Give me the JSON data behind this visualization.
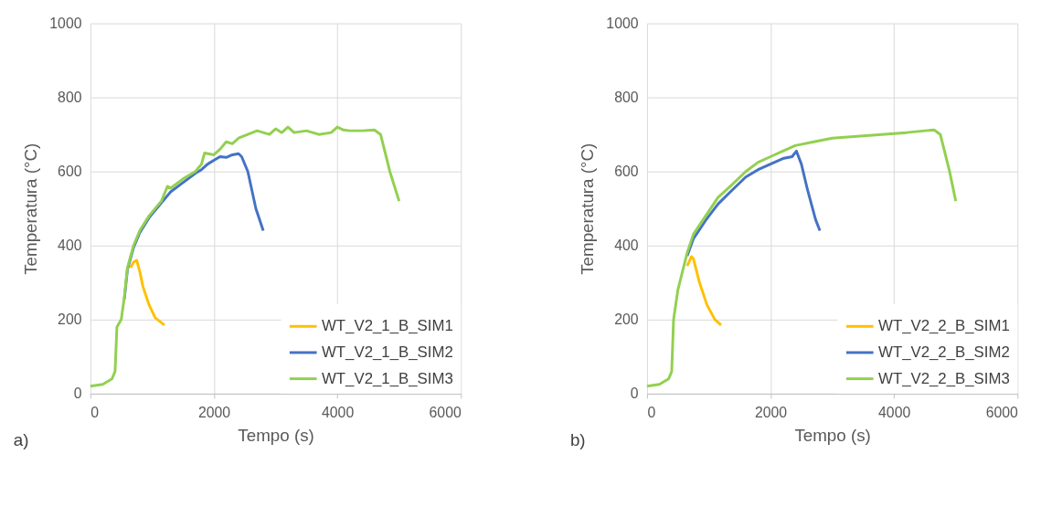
{
  "chart_data": [
    {
      "type": "line",
      "xlabel": "Tempo (s)",
      "ylabel": "Temperatura (°C)",
      "xlim": [
        0,
        6000
      ],
      "ylim": [
        0,
        1000
      ],
      "xticks": [
        0,
        2000,
        4000,
        6000
      ],
      "yticks": [
        0,
        200,
        400,
        600,
        800,
        1000
      ],
      "grid": true,
      "legend": "bottom right",
      "annotations": [
        "a)"
      ],
      "series": [
        {
          "name": "WT_V2_1_B_SIM1",
          "color": "#ffc000",
          "x": [
            650,
            700,
            750,
            800,
            850,
            950,
            1050,
            1200
          ],
          "values": [
            340,
            355,
            360,
            330,
            290,
            240,
            205,
            185
          ]
        },
        {
          "name": "WT_V2_1_B_SIM2",
          "color": "#4472c4",
          "x": [
            550,
            600,
            700,
            800,
            950,
            1150,
            1300,
            1500,
            1700,
            1800,
            1900,
            2000,
            2100,
            2200,
            2300,
            2400,
            2450,
            2550,
            2680,
            2800
          ],
          "values": [
            255,
            335,
            395,
            435,
            475,
            515,
            545,
            570,
            595,
            605,
            620,
            630,
            640,
            638,
            645,
            648,
            640,
            600,
            500,
            440
          ]
        },
        {
          "name": "WT_V2_1_B_SIM3",
          "color": "#92d050",
          "x": [
            0,
            200,
            350,
            400,
            430,
            500,
            550,
            600,
            700,
            800,
            950,
            1150,
            1200,
            1250,
            1300,
            1500,
            1700,
            1800,
            1850,
            2000,
            2100,
            2200,
            2300,
            2400,
            2550,
            2700,
            2800,
            2900,
            3000,
            3100,
            3200,
            3300,
            3500,
            3700,
            3900,
            4000,
            4100,
            4200,
            4400,
            4600,
            4700,
            4850,
            5000
          ],
          "values": [
            20,
            25,
            40,
            60,
            180,
            200,
            260,
            340,
            400,
            440,
            480,
            520,
            540,
            560,
            555,
            580,
            600,
            620,
            650,
            645,
            660,
            680,
            675,
            690,
            700,
            710,
            705,
            700,
            715,
            705,
            720,
            705,
            710,
            700,
            705,
            720,
            712,
            710,
            710,
            712,
            700,
            600,
            520
          ]
        }
      ]
    },
    {
      "type": "line",
      "xlabel": "Tempo (s)",
      "ylabel": "Temperatura (°C)",
      "xlim": [
        0,
        6000
      ],
      "ylim": [
        0,
        1000
      ],
      "xticks": [
        0,
        2000,
        4000,
        6000
      ],
      "yticks": [
        0,
        200,
        400,
        600,
        800,
        1000
      ],
      "grid": true,
      "legend": "bottom right",
      "annotations": [
        "b)"
      ],
      "series": [
        {
          "name": "WT_V2_2_B_SIM1",
          "color": "#ffc000",
          "x": [
            650,
            720,
            750,
            850,
            970,
            1100,
            1200
          ],
          "values": [
            345,
            370,
            365,
            300,
            240,
            200,
            185
          ]
        },
        {
          "name": "WT_V2_2_B_SIM2",
          "color": "#4472c4",
          "x": [
            650,
            750,
            950,
            1150,
            1350,
            1600,
            1800,
            2000,
            2200,
            2350,
            2420,
            2500,
            2600,
            2730,
            2800
          ],
          "values": [
            372,
            418,
            468,
            512,
            545,
            585,
            605,
            620,
            635,
            640,
            655,
            620,
            550,
            470,
            440
          ]
        },
        {
          "name": "WT_V2_2_B_SIM3",
          "color": "#92d050",
          "x": [
            0,
            200,
            350,
            400,
            430,
            500,
            650,
            750,
            950,
            1150,
            1350,
            1600,
            1800,
            2000,
            2200,
            2400,
            2700,
            3000,
            3400,
            3800,
            4200,
            4500,
            4650,
            4750,
            4900,
            5000
          ],
          "values": [
            20,
            25,
            40,
            60,
            200,
            280,
            380,
            430,
            480,
            530,
            560,
            600,
            625,
            640,
            655,
            670,
            680,
            690,
            695,
            700,
            705,
            710,
            712,
            700,
            600,
            520
          ]
        }
      ]
    }
  ]
}
